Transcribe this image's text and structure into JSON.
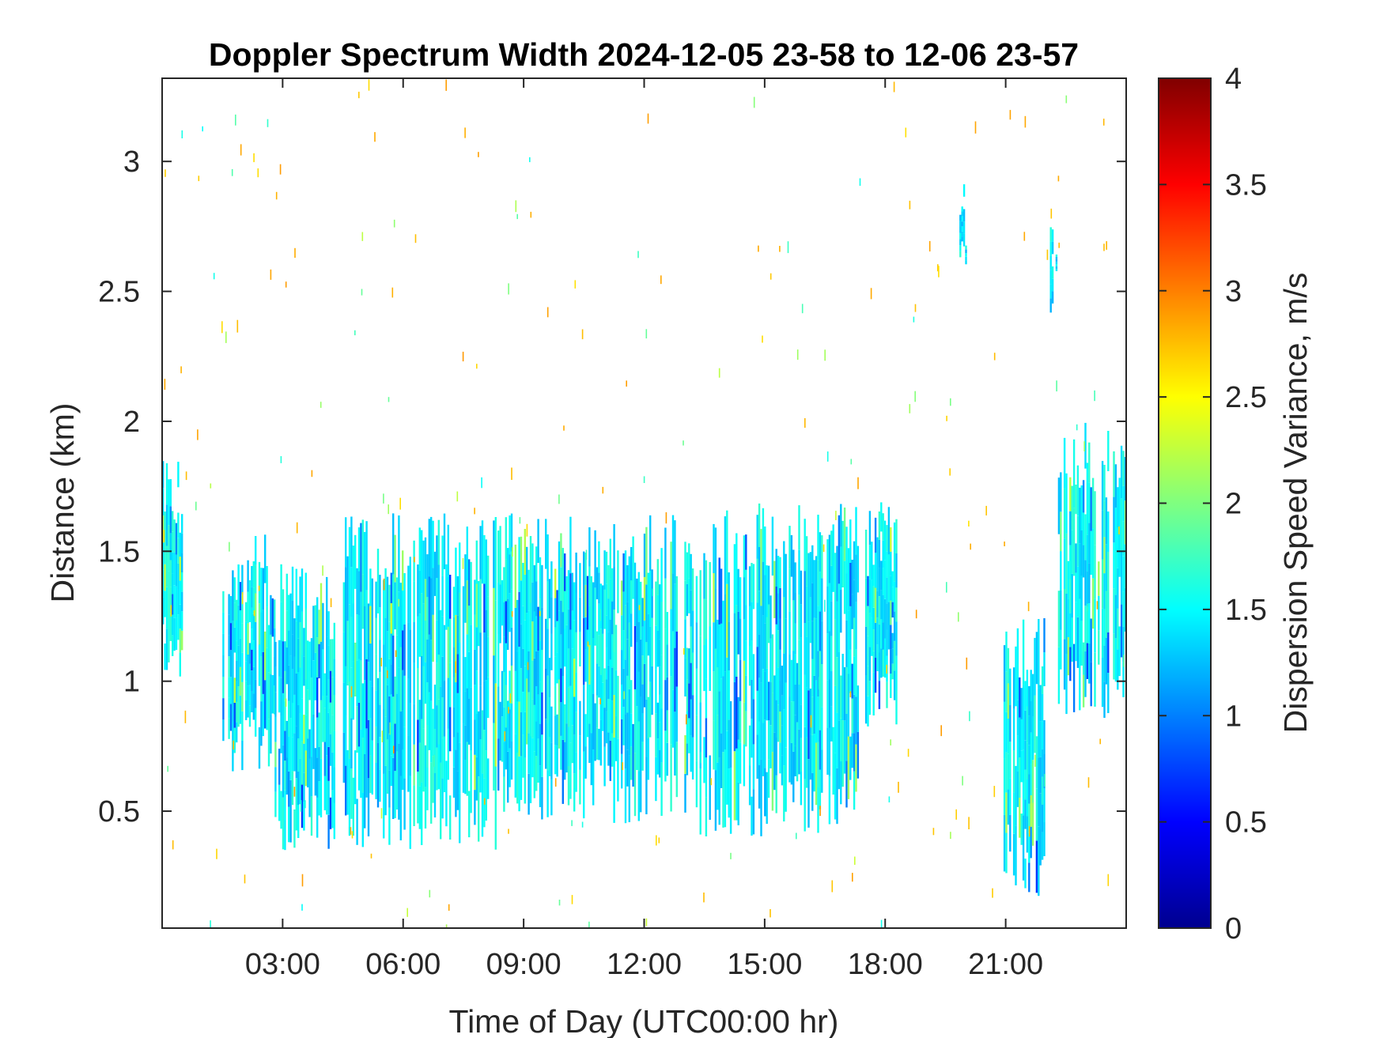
{
  "chart_data": {
    "type": "heatmap",
    "title": "Doppler Spectrum Width 2024-12-05 23-58 to 12-06 23-57",
    "xlabel": "Time of Day (UTC00:00 hr)",
    "ylabel": "Distance (km)",
    "xlim": [
      0,
      24
    ],
    "ylim": [
      0.05,
      3.32
    ],
    "x_ticks": [
      3,
      6,
      9,
      12,
      15,
      18,
      21
    ],
    "x_tick_labels": [
      "03:00",
      "06:00",
      "09:00",
      "12:00",
      "15:00",
      "18:00",
      "21:00"
    ],
    "y_ticks": [
      0.5,
      1,
      1.5,
      2,
      2.5,
      3
    ],
    "y_tick_labels": [
      "0.5",
      "1",
      "1.5",
      "2",
      "2.5",
      "3"
    ],
    "colorbar": {
      "label": "Dispersion Speed Variance, m/s",
      "colormap": "jet",
      "range": [
        0,
        4
      ],
      "ticks": [
        0,
        0.5,
        1,
        1.5,
        2,
        2.5,
        3,
        3.5,
        4
      ],
      "tick_labels": [
        "0",
        "0.5",
        "1",
        "1.5",
        "2",
        "2.5",
        "3",
        "3.5",
        "4"
      ]
    },
    "typical_value": 1.45,
    "value_spread": 0.25,
    "echo_regions": [
      {
        "t": [
          0.0,
          0.5
        ],
        "bottom": 1.1,
        "top": 1.85
      },
      {
        "t": [
          1.5,
          2.8
        ],
        "bottom": 0.75,
        "top": 1.6
      },
      {
        "t": [
          2.8,
          4.3
        ],
        "bottom": 0.45,
        "top": 1.45
      },
      {
        "t": [
          4.5,
          8.3
        ],
        "bottom": 0.45,
        "top": 1.65
      },
      {
        "t": [
          8.3,
          12.8
        ],
        "bottom": 0.55,
        "top": 1.65
      },
      {
        "t": [
          13.0,
          17.3
        ],
        "bottom": 0.5,
        "top": 1.7
      },
      {
        "t": [
          17.5,
          18.3
        ],
        "bottom": 0.9,
        "top": 1.7
      },
      {
        "t": [
          19.8,
          20.0
        ],
        "bottom": 2.65,
        "top": 2.95
      },
      {
        "t": [
          20.9,
          22.0
        ],
        "bottom": 0.25,
        "top": 1.25
      },
      {
        "t": [
          22.1,
          22.25
        ],
        "bottom": 2.45,
        "top": 2.75
      },
      {
        "t": [
          22.3,
          24.0
        ],
        "bottom": 0.95,
        "top": 2.0
      }
    ]
  }
}
